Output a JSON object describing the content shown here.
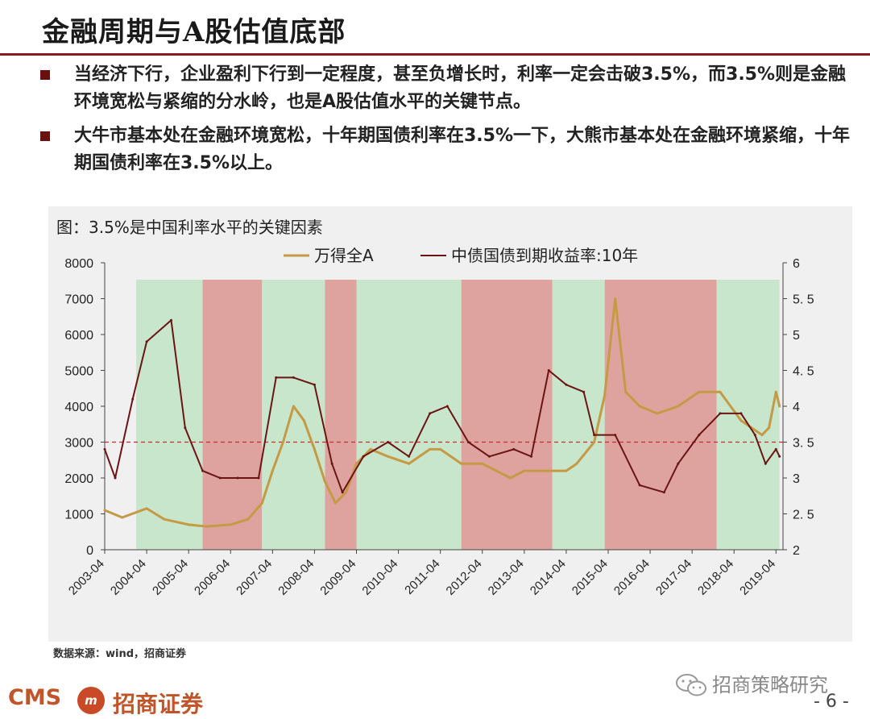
{
  "page": {
    "title": "金融周期与A股估值底部",
    "bullets": [
      "当经济下行，企业盈利下行到一定程度，甚至负增长时，利率一定会击破3.5%，而3.5%则是金融环境宽松与紧缩的分水岭，也是A股估值水平的关键节点。",
      "大牛市基本处在金融环境宽松，十年期国债利率在3.5%一下，大熊市基本处在金融环境紧缩，十年期国债利率在3.5%以上。"
    ],
    "figure_caption": "图：3.5%是中国利率水平的关键因素",
    "source": "数据来源：wind，招商证券",
    "footer": {
      "logo_text": "CMS",
      "badge_text": "m",
      "company": "招商证券",
      "wechat_name": "招商策略研究",
      "page_number": "- 6 -"
    }
  },
  "colors": {
    "wind_a": "#c49a45",
    "bond_yield": "#6b1414",
    "green_band": "#c8e6cc",
    "red_band": "#dfa39f",
    "ref_line": "#c03030",
    "title_rule": "#8b1a1a"
  },
  "chart_data": {
    "type": "line",
    "series": [
      {
        "name": "万得全A",
        "axis": "left",
        "x": [
          "2003-04",
          "2003-09",
          "2004-04",
          "2004-09",
          "2005-04",
          "2005-09",
          "2006-04",
          "2006-09",
          "2007-01",
          "2007-04",
          "2007-07",
          "2007-10",
          "2008-01",
          "2008-04",
          "2008-07",
          "2008-10",
          "2009-01",
          "2009-04",
          "2009-08",
          "2010-01",
          "2010-07",
          "2011-01",
          "2011-04",
          "2011-10",
          "2012-04",
          "2012-12",
          "2013-04",
          "2013-09",
          "2014-04",
          "2014-07",
          "2014-12",
          "2015-03",
          "2015-06",
          "2015-09",
          "2016-01",
          "2016-06",
          "2016-12",
          "2017-06",
          "2017-12",
          "2018-06",
          "2018-12",
          "2019-02",
          "2019-04",
          "2019-05"
        ],
        "values": [
          1100,
          900,
          1150,
          850,
          700,
          650,
          700,
          850,
          1300,
          2200,
          3000,
          4000,
          3600,
          2800,
          1900,
          1300,
          1600,
          2400,
          2800,
          2600,
          2400,
          2800,
          2800,
          2400,
          2400,
          2000,
          2200,
          2200,
          2200,
          2400,
          3000,
          4300,
          7000,
          4400,
          4000,
          3800,
          4000,
          4400,
          4400,
          3600,
          3200,
          3400,
          4400,
          4000
        ]
      },
      {
        "name": "中债国债到期收益率:10年",
        "axis": "right",
        "x": [
          "2003-04",
          "2003-07",
          "2003-12",
          "2004-04",
          "2004-11",
          "2005-03",
          "2005-08",
          "2006-01",
          "2006-06",
          "2006-12",
          "2007-05",
          "2007-10",
          "2008-04",
          "2008-09",
          "2008-12",
          "2009-06",
          "2010-01",
          "2010-07",
          "2011-01",
          "2011-06",
          "2011-12",
          "2012-06",
          "2013-01",
          "2013-06",
          "2013-11",
          "2014-04",
          "2014-09",
          "2014-12",
          "2015-06",
          "2016-01",
          "2016-08",
          "2016-12",
          "2017-06",
          "2017-12",
          "2018-06",
          "2018-10",
          "2019-01",
          "2019-04",
          "2019-05"
        ],
        "values": [
          3.4,
          3.0,
          4.1,
          4.9,
          5.2,
          3.7,
          3.1,
          3.0,
          3.0,
          3.0,
          4.4,
          4.4,
          4.3,
          3.2,
          2.8,
          3.3,
          3.5,
          3.3,
          3.9,
          4.0,
          3.5,
          3.3,
          3.4,
          3.3,
          4.5,
          4.3,
          4.2,
          3.6,
          3.6,
          2.9,
          2.8,
          3.2,
          3.6,
          3.9,
          3.9,
          3.6,
          3.2,
          3.4,
          3.3
        ]
      }
    ],
    "regimes": [
      {
        "start": "2004-01",
        "end": "2005-08",
        "type": "宽松"
      },
      {
        "start": "2005-08",
        "end": "2007-01",
        "type": "紧缩"
      },
      {
        "start": "2007-01",
        "end": "2008-07",
        "type": "宽松"
      },
      {
        "start": "2008-07",
        "end": "2009-04",
        "type": "紧缩"
      },
      {
        "start": "2009-04",
        "end": "2011-10",
        "type": "宽松"
      },
      {
        "start": "2011-10",
        "end": "2013-12",
        "type": "紧缩"
      },
      {
        "start": "2013-12",
        "end": "2015-03",
        "type": "宽松"
      },
      {
        "start": "2015-03",
        "end": "2017-11",
        "type": "紧缩"
      },
      {
        "start": "2017-11",
        "end": "2019-05",
        "type": "宽松"
      }
    ],
    "reference_line": {
      "axis": "right",
      "value": 3.5
    },
    "x_ticks": [
      "2003-04",
      "2004-04",
      "2005-04",
      "2006-04",
      "2007-04",
      "2008-04",
      "2009-04",
      "2010-04",
      "2011-04",
      "2012-04",
      "2013-04",
      "2014-04",
      "2015-04",
      "2016-04",
      "2017-04",
      "2018-04",
      "2019-04"
    ],
    "left_ticks": [
      "0",
      "1000",
      "2000",
      "3000",
      "4000",
      "5000",
      "6000",
      "7000",
      "8000"
    ],
    "right_ticks": [
      "2",
      "2. 5",
      "3",
      "3. 5",
      "4",
      "4. 5",
      "5",
      "5. 5",
      "6"
    ],
    "ylim_left": [
      0,
      8000
    ],
    "ylim_right": [
      2,
      6
    ],
    "xlim": [
      "2003-04",
      "2019-06"
    ],
    "legend_position": "top",
    "grid": false
  }
}
